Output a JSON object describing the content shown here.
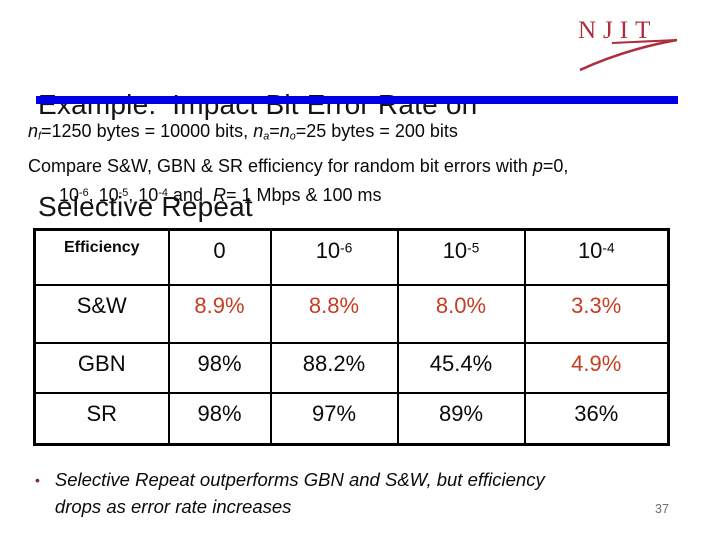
{
  "slide": {
    "title_line1": "Example:  Impact Bit Error Rate on",
    "title_line2": "Selective Repeat",
    "page_number": "37"
  },
  "logo": {
    "text": "NJIT",
    "color": "#AE2D3C"
  },
  "colors": {
    "bar": "#0000E6",
    "value_red": "#C63D22",
    "bullet": "#8B2323",
    "page_num": "#6E6E6E"
  },
  "body": {
    "line1": [
      {
        "t": "n",
        "s": "i"
      },
      {
        "t": "f",
        "s": "i sub"
      },
      {
        "t": "=1250 bytes = 10000 bits, "
      },
      {
        "t": "n",
        "s": "i"
      },
      {
        "t": "a",
        "s": "i sub"
      },
      {
        "t": "="
      },
      {
        "t": "n",
        "s": "i"
      },
      {
        "t": "o",
        "s": "i sub"
      },
      {
        "t": "=25 bytes = 200 bits"
      }
    ],
    "line2": [
      {
        "t": "Compare S&W, GBN & SR efficiency for random bit errors with "
      },
      {
        "t": "p",
        "s": "i"
      },
      {
        "t": "=0,"
      }
    ],
    "line3": [
      {
        "t": "10"
      },
      {
        "t": "-6",
        "s": "sup"
      },
      {
        "t": ", 10"
      },
      {
        "t": "-5",
        "s": "sup"
      },
      {
        "t": ", 10"
      },
      {
        "t": "-4",
        "s": "sup"
      },
      {
        "t": " and  "
      },
      {
        "t": "R",
        "s": "i"
      },
      {
        "t": "= 1 Mbps & 100 ms"
      }
    ]
  },
  "table": {
    "header": [
      {
        "text": "Efficiency"
      },
      {
        "text": "0"
      },
      {
        "text": "10",
        "sup": "-6"
      },
      {
        "text": "10",
        "sup": "-5"
      },
      {
        "text": "10",
        "sup": "-4"
      }
    ],
    "rows": [
      {
        "label": "S&W",
        "values": [
          {
            "text": "8.9%",
            "color": "#C63D22"
          },
          {
            "text": "8.8%",
            "color": "#C63D22"
          },
          {
            "text": "8.0%",
            "color": "#C63D22"
          },
          {
            "text": "3.3%",
            "color": "#C63D22"
          }
        ]
      },
      {
        "label": "GBN",
        "values": [
          {
            "text": "98%"
          },
          {
            "text": "88.2%"
          },
          {
            "text": "45.4%"
          },
          {
            "text": "4.9%",
            "color": "#C63D22"
          }
        ]
      },
      {
        "label": "SR",
        "values": [
          {
            "text": "98%"
          },
          {
            "text": "97%"
          },
          {
            "text": "89%"
          },
          {
            "text": "36%"
          }
        ]
      }
    ]
  },
  "bullet": {
    "marker": "•",
    "text": "Selective Repeat outperforms GBN and S&W, but efficiency\ndrops as error rate increases"
  }
}
